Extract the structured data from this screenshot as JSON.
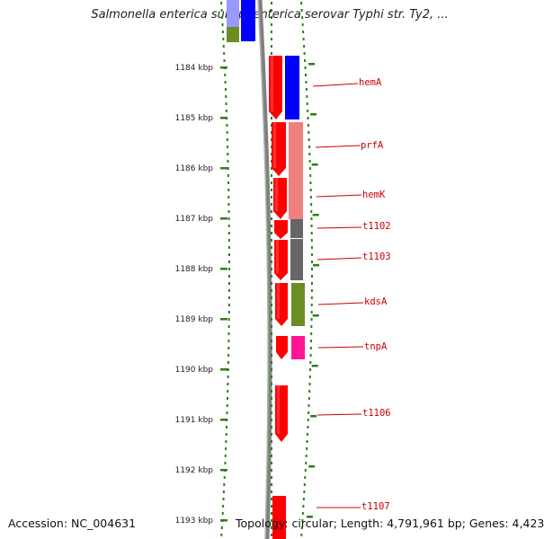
{
  "header": {
    "title": "Salmonella enterica subsp. enterica serovar Typhi str. Ty2, ..."
  },
  "footer": {
    "accession": "Accession: NC_004631",
    "summary": "Topology: circular; Length: 4,791,961 bp; Genes: 4,423"
  },
  "scale": {
    "tick_labels": [
      "1184 kbp",
      "1185 kbp",
      "1186 kbp",
      "1187 kbp",
      "1188 kbp",
      "1189 kbp",
      "1190 kbp",
      "1191 kbp",
      "1192 kbp",
      "1193 kbp"
    ]
  },
  "genes": [
    {
      "label": "hemA"
    },
    {
      "label": "prfA"
    },
    {
      "label": "hemK"
    },
    {
      "label": "t1102"
    },
    {
      "label": "t1103"
    },
    {
      "label": "kdsA"
    },
    {
      "label": "tnpA"
    },
    {
      "label": "t1106"
    },
    {
      "label": "t1107"
    }
  ],
  "colors": {
    "cds_forward": "#ff0000",
    "hemA": "#0000ff",
    "prfA": "#f08080",
    "hemK": "#f08080",
    "trna": "#666666",
    "kdsA": "#6b8e23",
    "tnpA": "#ff1493",
    "scale_tick": "#2e7d1a",
    "backbone": "#808080"
  }
}
